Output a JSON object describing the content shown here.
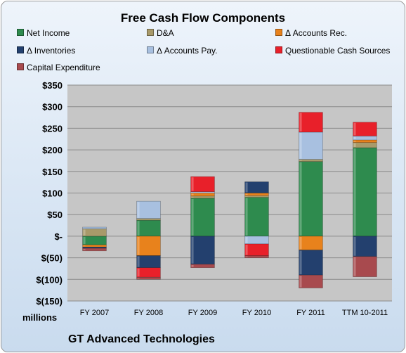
{
  "chart_data": {
    "type": "bar",
    "stacked": true,
    "title": "Free Cash Flow Components",
    "units_label": "millions",
    "company": "GT Advanced Technologies",
    "categories": [
      "FY 2007",
      "FY 2008",
      "FY 2009",
      "FY 2010",
      "FY 2011",
      "TTM 10-2011"
    ],
    "ylim": [
      -150,
      350
    ],
    "yticks": [
      -150,
      -100,
      -50,
      0,
      50,
      100,
      150,
      200,
      250,
      300,
      350
    ],
    "ytick_labels": [
      "$(150)",
      "$(100)",
      "$(50)",
      "$-",
      "$50",
      "$100",
      "$150",
      "$200",
      "$250",
      "$300",
      "$350"
    ],
    "grid": true,
    "legend_position": "top",
    "series": [
      {
        "name": "Net Income",
        "color": "#2e8b4e",
        "values": [
          -20,
          37,
          88,
          90,
          173,
          205
        ]
      },
      {
        "name": "D&A",
        "color": "#a89a6a",
        "values": [
          17,
          4,
          5,
          4,
          5,
          12
        ]
      },
      {
        "name": "Δ Accounts Rec.",
        "color": "#e8821c",
        "values": [
          -5,
          -45,
          7,
          6,
          -32,
          6
        ]
      },
      {
        "name": "Δ Inventories",
        "color": "#23406e",
        "values": [
          -3,
          -28,
          -65,
          26,
          -58,
          -47
        ]
      },
      {
        "name": "Δ Accounts Pay.",
        "color": "#a8c0e0",
        "values": [
          4,
          40,
          3,
          -18,
          63,
          9
        ]
      },
      {
        "name": "Questionable Cash Sources",
        "color": "#e8202a",
        "values": [
          0,
          -22,
          35,
          -27,
          46,
          32
        ]
      },
      {
        "name": "Capital Expenditure",
        "color": "#a84a4e",
        "values": [
          -6,
          -5,
          -8,
          -5,
          -30,
          -47
        ]
      }
    ]
  }
}
